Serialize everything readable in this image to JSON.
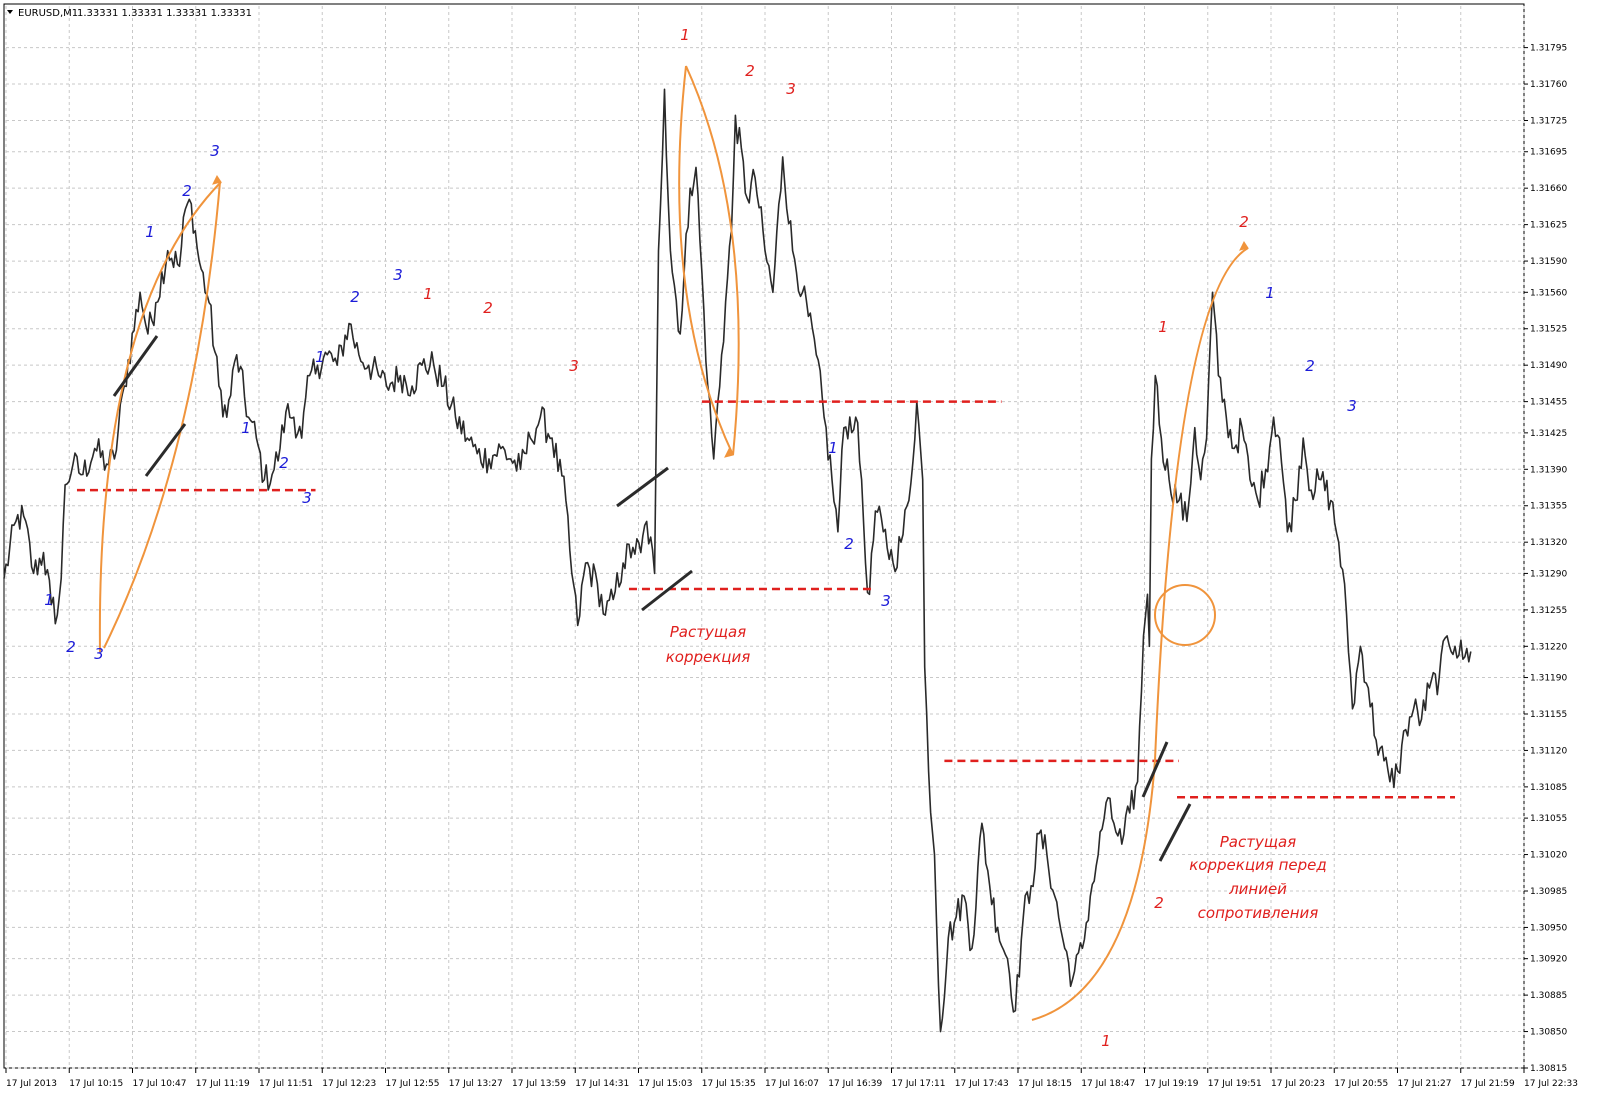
{
  "header": {
    "symbol_label": "EURUSD,M1",
    "ohlc_label": "1.33331 1.33331 1.33331 1.33331",
    "dropdown_icon": "triangle-down-icon"
  },
  "colors": {
    "price_line": "#2a2a2a",
    "grid": "#c8c8c8",
    "orange": "#f0943c",
    "red": "#e0201e",
    "blue": "#1c1cd8",
    "dark_line": "#2b2b2b"
  },
  "chart_data": {
    "type": "line",
    "grid": true,
    "ylim": [
      1.30815,
      1.3181
    ],
    "y_ticks": [
      "1.31795",
      "1.31760",
      "1.31725",
      "1.31695",
      "1.31660",
      "1.31625",
      "1.31590",
      "1.31560",
      "1.31525",
      "1.31490",
      "1.31455",
      "1.31425",
      "1.31390",
      "1.31355",
      "1.31320",
      "1.31290",
      "1.31255",
      "1.31220",
      "1.31190",
      "1.31155",
      "1.31120",
      "1.31085",
      "1.31055",
      "1.31020",
      "1.30985",
      "1.30950",
      "1.30920",
      "1.30885",
      "1.30850",
      "1.30815"
    ],
    "x_ticks": [
      "17 Jul 2013",
      "17 Jul 10:15",
      "17 Jul 10:47",
      "17 Jul 11:19",
      "17 Jul 11:51",
      "17 Jul 12:23",
      "17 Jul 12:55",
      "17 Jul 13:27",
      "17 Jul 13:59",
      "17 Jul 14:31",
      "17 Jul 15:03",
      "17 Jul 15:35",
      "17 Jul 16:07",
      "17 Jul 16:39",
      "17 Jul 17:11",
      "17 Jul 17:43",
      "17 Jul 18:15",
      "17 Jul 18:47",
      "17 Jul 19:19",
      "17 Jul 19:51",
      "17 Jul 20:23",
      "17 Jul 20:55",
      "17 Jul 21:27",
      "17 Jul 21:59",
      "17 Jul 22:33"
    ],
    "price_anchors": [
      {
        "t": "17 Jul 09:42",
        "p": 1.31285
      },
      {
        "t": "17 Jul 09:48",
        "p": 1.3134
      },
      {
        "t": "17 Jul 09:52",
        "p": 1.31345
      },
      {
        "t": "17 Jul 09:57",
        "p": 1.3129
      },
      {
        "t": "17 Jul 10:02",
        "p": 1.3131
      },
      {
        "t": "17 Jul 10:06",
        "p": 1.3126
      },
      {
        "t": "17 Jul 10:09",
        "p": 1.3125
      },
      {
        "t": "17 Jul 10:11",
        "p": 1.31285
      },
      {
        "t": "17 Jul 10:13",
        "p": 1.31375
      },
      {
        "t": "17 Jul 10:17",
        "p": 1.31395
      },
      {
        "t": "17 Jul 10:22",
        "p": 1.31385
      },
      {
        "t": "17 Jul 10:28",
        "p": 1.3141
      },
      {
        "t": "17 Jul 10:34",
        "p": 1.31395
      },
      {
        "t": "17 Jul 10:38",
        "p": 1.314
      },
      {
        "t": "17 Jul 10:43",
        "p": 1.3147
      },
      {
        "t": "17 Jul 10:51",
        "p": 1.3156
      },
      {
        "t": "17 Jul 10:55",
        "p": 1.3152
      },
      {
        "t": "17 Jul 10:59",
        "p": 1.3155
      },
      {
        "t": "17 Jul 11:05",
        "p": 1.316
      },
      {
        "t": "17 Jul 11:11",
        "p": 1.31585
      },
      {
        "t": "17 Jul 11:14",
        "p": 1.3164
      },
      {
        "t": "17 Jul 11:17",
        "p": 1.31645
      },
      {
        "t": "17 Jul 11:21",
        "p": 1.3159
      },
      {
        "t": "17 Jul 11:26",
        "p": 1.3155
      },
      {
        "t": "17 Jul 11:31",
        "p": 1.3147
      },
      {
        "t": "17 Jul 11:35",
        "p": 1.3144
      },
      {
        "t": "17 Jul 11:40",
        "p": 1.315
      },
      {
        "t": "17 Jul 11:46",
        "p": 1.3144
      },
      {
        "t": "17 Jul 11:50",
        "p": 1.3142
      },
      {
        "t": "17 Jul 11:54",
        "p": 1.3138
      },
      {
        "t": "17 Jul 11:58",
        "p": 1.31385
      },
      {
        "t": "17 Jul 12:02",
        "p": 1.3141
      },
      {
        "t": "17 Jul 12:05",
        "p": 1.31445
      },
      {
        "t": "17 Jul 12:09",
        "p": 1.3144
      },
      {
        "t": "17 Jul 12:13",
        "p": 1.3142
      },
      {
        "t": "17 Jul 12:17",
        "p": 1.3148
      },
      {
        "t": "17 Jul 12:21",
        "p": 1.3149
      },
      {
        "t": "17 Jul 12:26",
        "p": 1.315
      },
      {
        "t": "17 Jul 12:31",
        "p": 1.3149
      },
      {
        "t": "17 Jul 12:37",
        "p": 1.3153
      },
      {
        "t": "17 Jul 12:42",
        "p": 1.315
      },
      {
        "t": "17 Jul 12:47",
        "p": 1.3149
      },
      {
        "t": "17 Jul 12:52",
        "p": 1.3148
      },
      {
        "t": "17 Jul 12:56",
        "p": 1.3147
      },
      {
        "t": "17 Jul 13:03",
        "p": 1.3148
      },
      {
        "t": "17 Jul 13:09",
        "p": 1.3147
      },
      {
        "t": "17 Jul 13:14",
        "p": 1.3149
      },
      {
        "t": "17 Jul 13:20",
        "p": 1.3149
      },
      {
        "t": "17 Jul 13:25",
        "p": 1.3147
      },
      {
        "t": "17 Jul 13:31",
        "p": 1.3144
      },
      {
        "t": "17 Jul 13:37",
        "p": 1.3142
      },
      {
        "t": "17 Jul 13:42",
        "p": 1.31405
      },
      {
        "t": "17 Jul 13:48",
        "p": 1.314
      },
      {
        "t": "17 Jul 13:54",
        "p": 1.3141
      },
      {
        "t": "17 Jul 13:59",
        "p": 1.314
      },
      {
        "t": "17 Jul 14:04",
        "p": 1.3139
      },
      {
        "t": "17 Jul 14:09",
        "p": 1.3142
      },
      {
        "t": "17 Jul 14:14",
        "p": 1.3144
      },
      {
        "t": "17 Jul 14:20",
        "p": 1.3142
      },
      {
        "t": "17 Jul 14:27",
        "p": 1.3136
      },
      {
        "t": "17 Jul 14:30",
        "p": 1.3129
      },
      {
        "t": "17 Jul 14:33",
        "p": 1.3124
      },
      {
        "t": "17 Jul 14:37",
        "p": 1.313
      },
      {
        "t": "17 Jul 14:43",
        "p": 1.3128
      },
      {
        "t": "17 Jul 14:47",
        "p": 1.3125
      },
      {
        "t": "17 Jul 14:51",
        "p": 1.31265
      },
      {
        "t": "17 Jul 14:56",
        "p": 1.313
      },
      {
        "t": "17 Jul 15:01",
        "p": 1.31315
      },
      {
        "t": "17 Jul 15:05",
        "p": 1.3131
      },
      {
        "t": "17 Jul 15:08",
        "p": 1.3134
      },
      {
        "t": "17 Jul 15:12",
        "p": 1.3129
      },
      {
        "t": "17 Jul 15:14",
        "p": 1.316
      },
      {
        "t": "17 Jul 15:17",
        "p": 1.31755
      },
      {
        "t": "17 Jul 15:20",
        "p": 1.316
      },
      {
        "t": "17 Jul 15:25",
        "p": 1.3152
      },
      {
        "t": "17 Jul 15:30",
        "p": 1.3166
      },
      {
        "t": "17 Jul 15:33",
        "p": 1.3168
      },
      {
        "t": "17 Jul 15:39",
        "p": 1.3147
      },
      {
        "t": "17 Jul 15:42",
        "p": 1.314
      },
      {
        "t": "17 Jul 15:46",
        "p": 1.315
      },
      {
        "t": "17 Jul 15:51",
        "p": 1.3162
      },
      {
        "t": "17 Jul 15:53",
        "p": 1.3173
      },
      {
        "t": "17 Jul 15:59",
        "p": 1.3165
      },
      {
        "t": "17 Jul 16:03",
        "p": 1.3167
      },
      {
        "t": "17 Jul 16:08",
        "p": 1.316
      },
      {
        "t": "17 Jul 16:12",
        "p": 1.3156
      },
      {
        "t": "17 Jul 16:17",
        "p": 1.3169
      },
      {
        "t": "17 Jul 16:22",
        "p": 1.316
      },
      {
        "t": "17 Jul 16:27",
        "p": 1.3156
      },
      {
        "t": "17 Jul 16:34",
        "p": 1.315
      },
      {
        "t": "17 Jul 16:38",
        "p": 1.3144
      },
      {
        "t": "17 Jul 16:42",
        "p": 1.3138
      },
      {
        "t": "17 Jul 16:45",
        "p": 1.3133
      },
      {
        "t": "17 Jul 16:48",
        "p": 1.3143
      },
      {
        "t": "17 Jul 16:54",
        "p": 1.3144
      },
      {
        "t": "17 Jul 16:57",
        "p": 1.3138
      },
      {
        "t": "17 Jul 16:59",
        "p": 1.313
      },
      {
        "t": "17 Jul 17:01",
        "p": 1.3127
      },
      {
        "t": "17 Jul 17:04",
        "p": 1.3135
      },
      {
        "t": "17 Jul 17:08",
        "p": 1.3133
      },
      {
        "t": "17 Jul 17:13",
        "p": 1.313
      },
      {
        "t": "17 Jul 17:17",
        "p": 1.3132
      },
      {
        "t": "17 Jul 17:21",
        "p": 1.3136
      },
      {
        "t": "17 Jul 17:25",
        "p": 1.31455
      },
      {
        "t": "17 Jul 17:28",
        "p": 1.3138
      },
      {
        "t": "17 Jul 17:29",
        "p": 1.312
      },
      {
        "t": "17 Jul 17:31",
        "p": 1.311
      },
      {
        "t": "17 Jul 17:34",
        "p": 1.3102
      },
      {
        "t": "17 Jul 17:37",
        "p": 1.3085
      },
      {
        "t": "17 Jul 17:41",
        "p": 1.3094
      },
      {
        "t": "17 Jul 17:45",
        "p": 1.3096
      },
      {
        "t": "17 Jul 17:49",
        "p": 1.3098
      },
      {
        "t": "17 Jul 17:53",
        "p": 1.3093
      },
      {
        "t": "17 Jul 17:58",
        "p": 1.3105
      },
      {
        "t": "17 Jul 18:02",
        "p": 1.3099
      },
      {
        "t": "17 Jul 18:06",
        "p": 1.3095
      },
      {
        "t": "17 Jul 18:11",
        "p": 1.3092
      },
      {
        "t": "17 Jul 18:15",
        "p": 1.3087
      },
      {
        "t": "17 Jul 18:19",
        "p": 1.3096
      },
      {
        "t": "17 Jul 18:23",
        "p": 1.3099
      },
      {
        "t": "17 Jul 18:27",
        "p": 1.3104
      },
      {
        "t": "17 Jul 18:31",
        "p": 1.3102
      },
      {
        "t": "17 Jul 18:35",
        "p": 1.3098
      },
      {
        "t": "17 Jul 18:40",
        "p": 1.3093
      },
      {
        "t": "17 Jul 18:44",
        "p": 1.309
      },
      {
        "t": "17 Jul 18:49",
        "p": 1.3093
      },
      {
        "t": "17 Jul 18:53",
        "p": 1.3098
      },
      {
        "t": "17 Jul 18:57",
        "p": 1.3102
      },
      {
        "t": "17 Jul 19:01",
        "p": 1.3107
      },
      {
        "t": "17 Jul 19:05",
        "p": 1.3105
      },
      {
        "t": "17 Jul 19:09",
        "p": 1.3103
      },
      {
        "t": "17 Jul 19:13",
        "p": 1.3106
      },
      {
        "t": "17 Jul 19:17",
        "p": 1.3109
      },
      {
        "t": "17 Jul 19:20",
        "p": 1.3123
      },
      {
        "t": "17 Jul 19:22",
        "p": 1.3127
      },
      {
        "t": "17 Jul 19:23",
        "p": 1.3122
      },
      {
        "t": "17 Jul 19:24",
        "p": 1.314
      },
      {
        "t": "17 Jul 19:26",
        "p": 1.3148
      },
      {
        "t": "17 Jul 19:29",
        "p": 1.3142
      },
      {
        "t": "17 Jul 19:33",
        "p": 1.3138
      },
      {
        "t": "17 Jul 19:38",
        "p": 1.3136
      },
      {
        "t": "17 Jul 19:42",
        "p": 1.3134
      },
      {
        "t": "17 Jul 19:46",
        "p": 1.3143
      },
      {
        "t": "17 Jul 19:49",
        "p": 1.3138
      },
      {
        "t": "17 Jul 19:52",
        "p": 1.3142
      },
      {
        "t": "17 Jul 19:55",
        "p": 1.3156
      },
      {
        "t": "17 Jul 19:58",
        "p": 1.3148
      },
      {
        "t": "17 Jul 20:02",
        "p": 1.3144
      },
      {
        "t": "17 Jul 20:06",
        "p": 1.3141
      },
      {
        "t": "17 Jul 20:10",
        "p": 1.3143
      },
      {
        "t": "17 Jul 20:14",
        "p": 1.3138
      },
      {
        "t": "17 Jul 20:18",
        "p": 1.3136
      },
      {
        "t": "17 Jul 20:22",
        "p": 1.3139
      },
      {
        "t": "17 Jul 20:26",
        "p": 1.3144
      },
      {
        "t": "17 Jul 20:29",
        "p": 1.3142
      },
      {
        "t": "17 Jul 20:33",
        "p": 1.3133
      },
      {
        "t": "17 Jul 20:37",
        "p": 1.3136
      },
      {
        "t": "17 Jul 20:41",
        "p": 1.3142
      },
      {
        "t": "17 Jul 20:45",
        "p": 1.3137
      },
      {
        "t": "17 Jul 20:50",
        "p": 1.3138
      },
      {
        "t": "17 Jul 20:55",
        "p": 1.3136
      },
      {
        "t": "17 Jul 20:59",
        "p": 1.3132
      },
      {
        "t": "17 Jul 21:03",
        "p": 1.3125
      },
      {
        "t": "17 Jul 21:06",
        "p": 1.3116
      },
      {
        "t": "17 Jul 21:10",
        "p": 1.3122
      },
      {
        "t": "17 Jul 21:14",
        "p": 1.3118
      },
      {
        "t": "17 Jul 21:18",
        "p": 1.3113
      },
      {
        "t": "17 Jul 21:22",
        "p": 1.3111
      },
      {
        "t": "17 Jul 21:25",
        "p": 1.3109
      },
      {
        "t": "17 Jul 21:29",
        "p": 1.311
      },
      {
        "t": "17 Jul 21:33",
        "p": 1.3114
      },
      {
        "t": "17 Jul 21:37",
        "p": 1.3116
      },
      {
        "t": "17 Jul 21:41",
        "p": 1.3115
      },
      {
        "t": "17 Jul 21:45",
        "p": 1.3118
      },
      {
        "t": "17 Jul 21:50",
        "p": 1.3119
      },
      {
        "t": "17 Jul 21:54",
        "p": 1.3123
      },
      {
        "t": "17 Jul 21:58",
        "p": 1.3122
      },
      {
        "t": "17 Jul 22:03",
        "p": 1.3121
      },
      {
        "t": "17 Jul 22:06",
        "p": 1.31215
      }
    ],
    "annotations": {
      "horizontal_levels": [
        {
          "from": "17 Jul 10:19",
          "to": "17 Jul 12:20",
          "price": 1.3137
        },
        {
          "from": "17 Jul 14:59",
          "to": "17 Jul 17:04",
          "price": 1.31275
        },
        {
          "from": "17 Jul 15:36",
          "to": "17 Jul 18:08",
          "price": 1.31455
        },
        {
          "from": "17 Jul 17:39",
          "to": "17 Jul 19:38",
          "price": 1.3111
        },
        {
          "from": "17 Jul 19:37",
          "to": "17 Jul 21:58",
          "price": 1.31075
        }
      ],
      "notes": [
        {
          "lines": [
            "Растущая",
            "коррекция"
          ]
        },
        {
          "lines": [
            "Растущая",
            "коррекция перед",
            "линией",
            "сопротивления"
          ]
        }
      ],
      "wave_labels": [
        {
          "text": "1",
          "color": "blue"
        },
        {
          "text": "2",
          "color": "blue"
        },
        {
          "text": "3",
          "color": "blue"
        },
        {
          "text": "1",
          "color": "blue"
        },
        {
          "text": "2",
          "color": "blue"
        },
        {
          "text": "3",
          "color": "blue"
        },
        {
          "text": "1",
          "color": "blue"
        },
        {
          "text": "2",
          "color": "blue"
        },
        {
          "text": "3",
          "color": "blue"
        },
        {
          "text": "1",
          "color": "blue"
        },
        {
          "text": "2",
          "color": "blue"
        },
        {
          "text": "3",
          "color": "blue"
        },
        {
          "text": "1",
          "color": "red"
        },
        {
          "text": "2",
          "color": "red"
        },
        {
          "text": "3",
          "color": "red"
        },
        {
          "text": "1",
          "color": "red"
        },
        {
          "text": "2",
          "color": "red"
        },
        {
          "text": "3",
          "color": "red"
        },
        {
          "text": "1",
          "color": "blue"
        },
        {
          "text": "2",
          "color": "blue"
        },
        {
          "text": "3",
          "color": "blue"
        },
        {
          "text": "1",
          "color": "red"
        },
        {
          "text": "2",
          "color": "red"
        },
        {
          "text": "1",
          "color": "red"
        },
        {
          "text": "2",
          "color": "red"
        },
        {
          "text": "1",
          "color": "blue"
        },
        {
          "text": "2",
          "color": "blue"
        },
        {
          "text": "3",
          "color": "blue"
        }
      ]
    }
  }
}
